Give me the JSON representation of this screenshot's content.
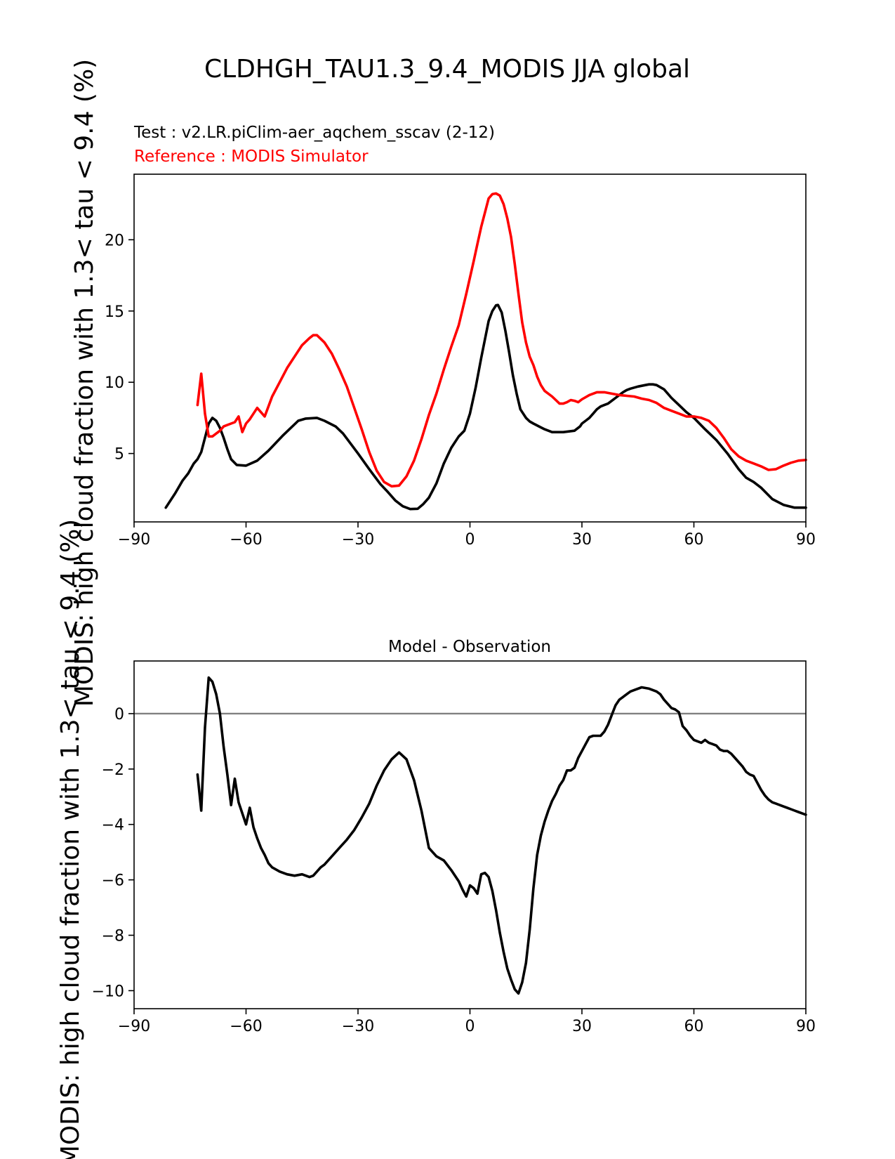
{
  "figure": {
    "title": "CLDHGH_TAU1.3_9.4_MODIS JJA global",
    "ylabel_long": "MODIS: high cloud fraction with 1.3< tau < 9.4 (%)"
  },
  "colors": {
    "test": "#000000",
    "reference": "#ff0000",
    "zero_line": "#808080"
  },
  "chart_data": [
    {
      "type": "line",
      "test_label": "Test : v2.LR.piClim-aer_aqchem_sscav (2-12)",
      "reference_label": "Reference : MODIS Simulator",
      "xlim": [
        -90,
        90
      ],
      "ylim": [
        0.2,
        24.6
      ],
      "xticks": [
        -90,
        -60,
        -30,
        0,
        30,
        60,
        90
      ],
      "xtick_labels": [
        "−90",
        "−60",
        "−30",
        "0",
        "30",
        "60",
        "90"
      ],
      "yticks": [
        5,
        10,
        15,
        20
      ],
      "ytick_labels": [
        "5",
        "10",
        "15",
        "20"
      ],
      "series": [
        {
          "name": "Test",
          "x": [
            -81.5,
            -79,
            -77,
            -75.5,
            -74,
            -73,
            -72,
            -71,
            -70,
            -69,
            -68,
            -67,
            -66,
            -65,
            -64,
            -62.5,
            -60,
            -57,
            -54,
            -50,
            -46,
            -44,
            -41,
            -39,
            -36,
            -34,
            -32,
            -30,
            -27,
            -24,
            -22,
            -20,
            -18,
            -16,
            -14,
            -12.5,
            -11,
            -9,
            -7,
            -5,
            -3,
            -1.5,
            0,
            1.5,
            3,
            4,
            5,
            6,
            7,
            7.5,
            8.5,
            9.5,
            10.5,
            11.5,
            12.5,
            13.5,
            15,
            16,
            17,
            18.5,
            20,
            22,
            25,
            28,
            29.5,
            30,
            31,
            32,
            33,
            34,
            35,
            36,
            37,
            38,
            39,
            40,
            41,
            42,
            43,
            45,
            47,
            48,
            49,
            50,
            52,
            54,
            56,
            58,
            60,
            63,
            66,
            69,
            72,
            74,
            76,
            78,
            81,
            84,
            87,
            90
          ],
          "y": [
            1.2,
            2.2,
            3.1,
            3.6,
            4.3,
            4.6,
            5.1,
            6.1,
            7.1,
            7.5,
            7.3,
            6.8,
            6.1,
            5.3,
            4.6,
            4.2,
            4.15,
            4.5,
            5.2,
            6.3,
            7.3,
            7.45,
            7.5,
            7.3,
            6.9,
            6.4,
            5.7,
            5.0,
            3.9,
            2.85,
            2.3,
            1.7,
            1.3,
            1.1,
            1.12,
            1.45,
            1.9,
            2.9,
            4.3,
            5.4,
            6.2,
            6.6,
            7.8,
            9.6,
            11.7,
            13.0,
            14.3,
            15.0,
            15.4,
            15.42,
            14.9,
            13.6,
            12.1,
            10.5,
            9.2,
            8.1,
            7.5,
            7.25,
            7.1,
            6.9,
            6.7,
            6.5,
            6.5,
            6.6,
            6.9,
            7.1,
            7.3,
            7.5,
            7.8,
            8.1,
            8.3,
            8.4,
            8.5,
            8.7,
            8.9,
            9.1,
            9.3,
            9.45,
            9.55,
            9.7,
            9.8,
            9.85,
            9.85,
            9.8,
            9.5,
            8.9,
            8.4,
            7.9,
            7.5,
            6.7,
            5.95,
            5.0,
            3.9,
            3.3,
            3.0,
            2.6,
            1.8,
            1.4,
            1.2,
            1.2
          ]
        },
        {
          "name": "Reference",
          "x": [
            -73,
            -72,
            -71,
            -70,
            -69,
            -68,
            -67,
            -66,
            -65,
            -64,
            -63,
            -62,
            -61,
            -60,
            -59,
            -58,
            -57,
            -55,
            -53,
            -51,
            -49,
            -47,
            -45,
            -43,
            -42,
            -41,
            -39,
            -37,
            -35,
            -33,
            -31,
            -29,
            -27,
            -25,
            -23,
            -21,
            -19,
            -17,
            -15,
            -13,
            -11,
            -9,
            -7,
            -5,
            -3,
            -1,
            1,
            2,
            3,
            4,
            5,
            6,
            7,
            8,
            9,
            10,
            11,
            12,
            13,
            14,
            15,
            16,
            17,
            18,
            19,
            20,
            22,
            23,
            24,
            25,
            26,
            27,
            28,
            29,
            30,
            32,
            34,
            36,
            38,
            40,
            42,
            44,
            46,
            48,
            50,
            52,
            54,
            56,
            58,
            60,
            62,
            64,
            66,
            68,
            70,
            72,
            74,
            76,
            78,
            80,
            82,
            84,
            86,
            88,
            90
          ],
          "y": [
            8.4,
            10.6,
            7.8,
            6.2,
            6.2,
            6.4,
            6.6,
            6.9,
            7.0,
            7.1,
            7.2,
            7.6,
            6.5,
            7.1,
            7.4,
            7.8,
            8.2,
            7.6,
            9.0,
            10.0,
            11.0,
            11.8,
            12.6,
            13.1,
            13.3,
            13.3,
            12.8,
            12.0,
            10.9,
            9.7,
            8.2,
            6.7,
            5.1,
            3.8,
            3.0,
            2.7,
            2.75,
            3.4,
            4.5,
            6.0,
            7.7,
            9.2,
            10.9,
            12.5,
            14.0,
            16.2,
            18.5,
            19.7,
            20.9,
            21.9,
            22.9,
            23.2,
            23.25,
            23.1,
            22.5,
            21.5,
            20.2,
            18.3,
            16.2,
            14.2,
            12.8,
            11.8,
            11.2,
            10.4,
            9.8,
            9.4,
            9.0,
            8.75,
            8.5,
            8.5,
            8.6,
            8.75,
            8.7,
            8.6,
            8.8,
            9.1,
            9.3,
            9.3,
            9.2,
            9.1,
            9.05,
            9.0,
            8.85,
            8.75,
            8.55,
            8.2,
            8.0,
            7.8,
            7.6,
            7.6,
            7.5,
            7.3,
            6.8,
            6.1,
            5.3,
            4.8,
            4.5,
            4.3,
            4.1,
            3.85,
            3.9,
            4.15,
            4.35,
            4.5,
            4.55
          ]
        }
      ]
    },
    {
      "type": "line",
      "title": "Model - Observation",
      "xlim": [
        -90,
        90
      ],
      "ylim": [
        -10.65,
        1.9
      ],
      "xticks": [
        -90,
        -60,
        -30,
        0,
        30,
        60,
        90
      ],
      "xtick_labels": [
        "−90",
        "−60",
        "−30",
        "0",
        "30",
        "60",
        "90"
      ],
      "yticks": [
        -10,
        -8,
        -6,
        -4,
        -2,
        0
      ],
      "ytick_labels": [
        "−10",
        "−8",
        "−6",
        "−4",
        "−2",
        "0"
      ],
      "zero_line": 0,
      "series": [
        {
          "name": "Model - Observation",
          "x": [
            -73,
            -72,
            -71,
            -70,
            -69,
            -68,
            -67,
            -66,
            -65,
            -64,
            -63,
            -62,
            -61,
            -60,
            -59,
            -58,
            -57,
            -56,
            -55,
            -54,
            -53,
            -51,
            -49,
            -47,
            -45,
            -43,
            -42,
            -41,
            -40,
            -39,
            -37,
            -35,
            -33,
            -31,
            -29,
            -27,
            -25,
            -23,
            -21,
            -19,
            -17,
            -15,
            -13,
            -11,
            -9,
            -7,
            -5,
            -3,
            -2,
            -1,
            0,
            1,
            2,
            3,
            4,
            5,
            6,
            7,
            8,
            9,
            10,
            11,
            12,
            13,
            14,
            15,
            16,
            17,
            18,
            19,
            20,
            21,
            22,
            23,
            24,
            25,
            26,
            27,
            28,
            29,
            30,
            31,
            32,
            33,
            34,
            35,
            36,
            37,
            38,
            39,
            40,
            41,
            42,
            43,
            44,
            46,
            48,
            49,
            50,
            51,
            52,
            53,
            54,
            55,
            56,
            57,
            58,
            59,
            60,
            61,
            62,
            63,
            64,
            65,
            66,
            67,
            68,
            69,
            70,
            71,
            72,
            73,
            74,
            75,
            76,
            77,
            78,
            79,
            80,
            81,
            82,
            83,
            84,
            85,
            86,
            87,
            88,
            89,
            90
          ],
          "y": [
            -2.2,
            -3.5,
            -0.5,
            1.3,
            1.15,
            0.7,
            0.0,
            -1.2,
            -2.2,
            -3.3,
            -2.35,
            -3.2,
            -3.6,
            -4.0,
            -3.4,
            -4.1,
            -4.5,
            -4.85,
            -5.1,
            -5.4,
            -5.55,
            -5.7,
            -5.8,
            -5.85,
            -5.8,
            -5.9,
            -5.85,
            -5.7,
            -5.55,
            -5.45,
            -5.15,
            -4.85,
            -4.55,
            -4.2,
            -3.75,
            -3.25,
            -2.6,
            -2.05,
            -1.65,
            -1.4,
            -1.65,
            -2.4,
            -3.5,
            -4.85,
            -5.15,
            -5.3,
            -5.65,
            -6.05,
            -6.35,
            -6.6,
            -6.2,
            -6.3,
            -6.5,
            -5.8,
            -5.75,
            -5.9,
            -6.4,
            -7.1,
            -7.9,
            -8.6,
            -9.2,
            -9.6,
            -9.95,
            -10.1,
            -9.7,
            -9.0,
            -7.8,
            -6.3,
            -5.1,
            -4.4,
            -3.9,
            -3.5,
            -3.15,
            -2.9,
            -2.6,
            -2.4,
            -2.05,
            -2.05,
            -1.95,
            -1.6,
            -1.35,
            -1.1,
            -0.85,
            -0.8,
            -0.8,
            -0.8,
            -0.65,
            -0.4,
            -0.05,
            0.3,
            0.5,
            0.6,
            0.7,
            0.8,
            0.85,
            0.95,
            0.9,
            0.85,
            0.8,
            0.7,
            0.5,
            0.35,
            0.2,
            0.15,
            0.05,
            -0.45,
            -0.6,
            -0.8,
            -0.95,
            -1.0,
            -1.05,
            -0.95,
            -1.05,
            -1.1,
            -1.15,
            -1.3,
            -1.35,
            -1.35,
            -1.45,
            -1.6,
            -1.75,
            -1.9,
            -2.1,
            -2.2,
            -2.25,
            -2.5,
            -2.75,
            -2.95,
            -3.1,
            -3.2,
            -3.25,
            -3.3,
            -3.35,
            -3.4,
            -3.45,
            -3.5,
            -3.55,
            -3.6,
            -3.65
          ]
        }
      ]
    }
  ]
}
